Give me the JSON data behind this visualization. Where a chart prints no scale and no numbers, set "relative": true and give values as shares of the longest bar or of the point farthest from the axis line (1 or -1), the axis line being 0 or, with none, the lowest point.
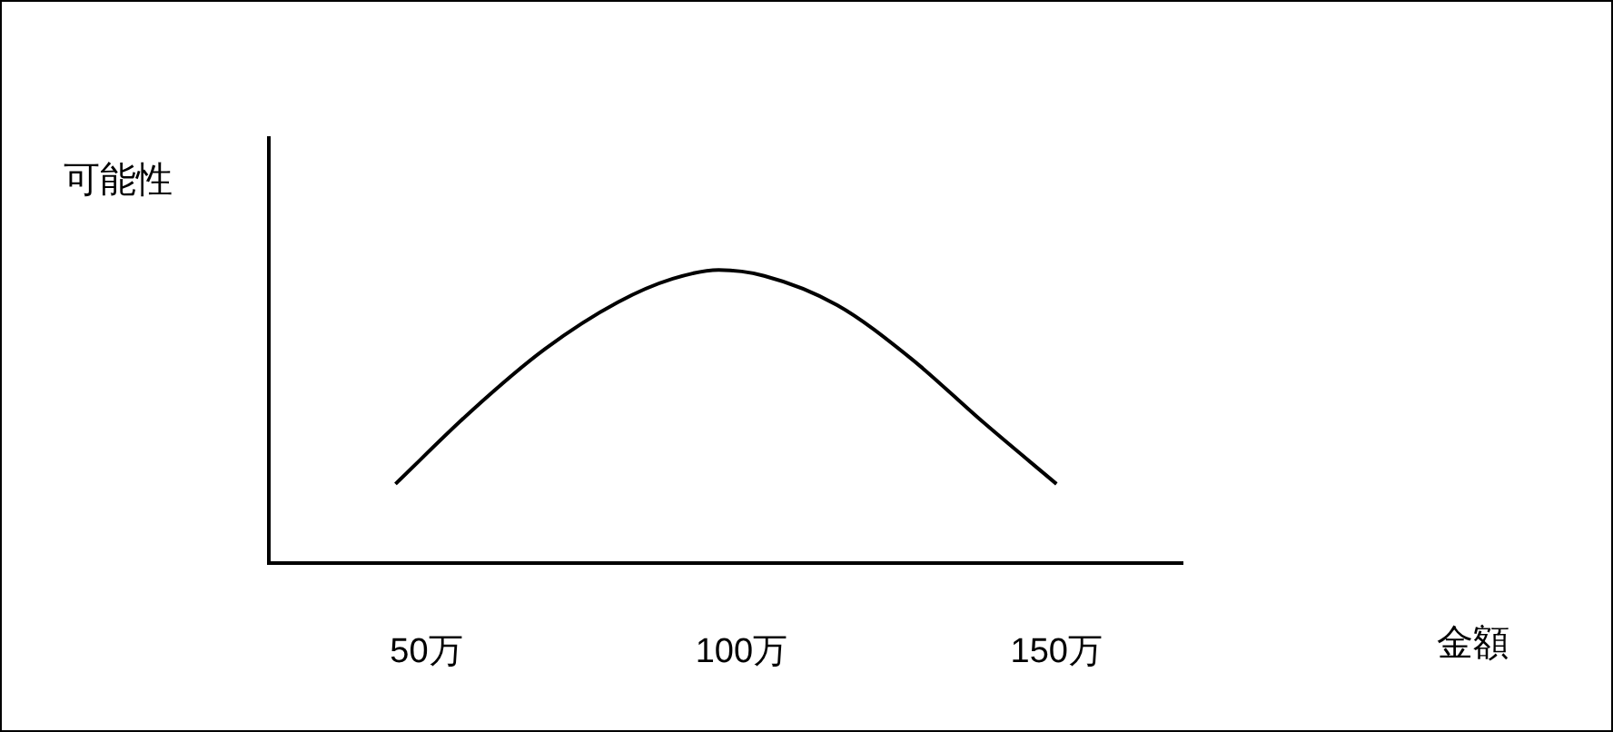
{
  "chart_data": {
    "type": "line",
    "relative": true,
    "annotations": [
      "金額"
    ],
    "ylabel": "可能性",
    "xlim": [
      25,
      170
    ],
    "xticks": [
      {
        "value": 50,
        "label": "50万"
      },
      {
        "value": 100,
        "label": "100万"
      },
      {
        "value": 150,
        "label": "150万"
      }
    ],
    "series": [
      {
        "color": "#000000",
        "x": [
          45.1,
          57.2,
          68.8,
          80.4,
          89.1,
          96.4,
          103.6,
          115.2,
          126.8,
          138.4,
          150
        ],
        "values": [
          0.27,
          0.52,
          0.73,
          0.89,
          0.97,
          1,
          0.98,
          0.88,
          0.7,
          0.48,
          0.27
        ]
      }
    ],
    "grid": false,
    "legend": false,
    "marker": "none",
    "line_style": "solid"
  }
}
